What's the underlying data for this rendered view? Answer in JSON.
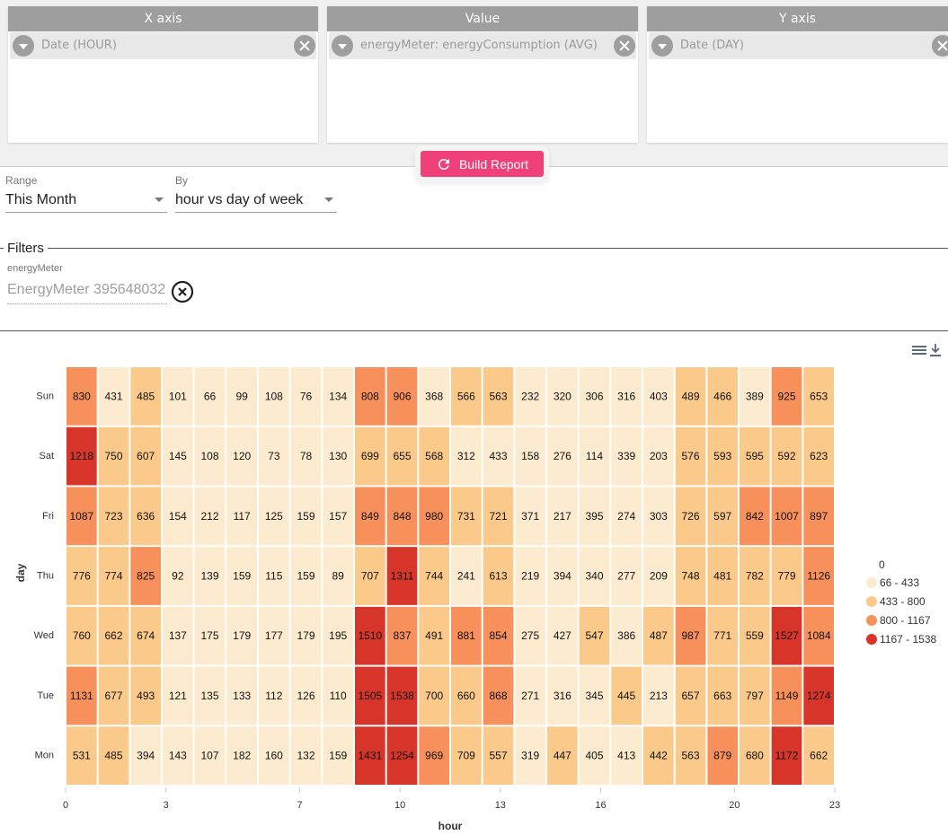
{
  "axes": {
    "x": {
      "header": "X axis",
      "chip": "Date (HOUR)"
    },
    "value": {
      "header": "Value",
      "chip": "energyMeter: energyConsumption (AVG)"
    },
    "y": {
      "header": "Y axis",
      "chip": "Date (DAY)"
    }
  },
  "build_button": {
    "label": "Build Report",
    "color": "#f0407a"
  },
  "range": {
    "label": "Range",
    "value": "This Month"
  },
  "by": {
    "label": "By",
    "value": "hour vs day of week"
  },
  "filters": {
    "title": "Filters",
    "field_label": "energyMeter",
    "field_value": "EnergyMeter 395648032"
  },
  "toolbar": {
    "icons": [
      "menu-icon",
      "download-icon"
    ]
  },
  "chart_data": {
    "type": "heatmap",
    "xlabel": "hour",
    "ylabel": "day",
    "x_ticks": [
      "0",
      "3",
      "7",
      "10",
      "13",
      "16",
      "20",
      "23"
    ],
    "rows": [
      "Sun",
      "Sat",
      "Fri",
      "Thu",
      "Wed",
      "Tue",
      "Mon"
    ],
    "columns": [
      "0",
      "1",
      "2",
      "3",
      "4",
      "5",
      "6",
      "7",
      "8",
      "9",
      "10",
      "11",
      "12",
      "13",
      "14",
      "15",
      "16",
      "17",
      "18",
      "19",
      "20",
      "21",
      "22",
      "23"
    ],
    "values": [
      [
        830,
        431,
        485,
        101,
        66,
        99,
        108,
        76,
        134,
        808,
        906,
        368,
        566,
        563,
        232,
        320,
        306,
        316,
        403,
        489,
        466,
        389,
        925,
        653
      ],
      [
        1218,
        750,
        607,
        145,
        108,
        120,
        73,
        78,
        130,
        699,
        655,
        568,
        312,
        433,
        158,
        276,
        114,
        339,
        203,
        576,
        593,
        595,
        592,
        623
      ],
      [
        1087,
        723,
        636,
        154,
        212,
        117,
        125,
        159,
        157,
        849,
        848,
        980,
        731,
        721,
        371,
        217,
        395,
        274,
        303,
        726,
        597,
        842,
        1007,
        897
      ],
      [
        776,
        774,
        825,
        92,
        139,
        159,
        115,
        159,
        89,
        707,
        1311,
        744,
        241,
        613,
        219,
        394,
        340,
        277,
        209,
        748,
        481,
        782,
        779,
        1126
      ],
      [
        760,
        662,
        674,
        137,
        175,
        179,
        177,
        179,
        195,
        1510,
        837,
        491,
        881,
        854,
        275,
        427,
        547,
        386,
        487,
        987,
        771,
        559,
        1527,
        1084
      ],
      [
        1131,
        677,
        493,
        121,
        135,
        133,
        112,
        126,
        110,
        1505,
        1538,
        700,
        660,
        868,
        271,
        316,
        345,
        445,
        213,
        657,
        663,
        797,
        1149,
        1274
      ],
      [
        531,
        485,
        394,
        143,
        107,
        182,
        160,
        132,
        159,
        1431,
        1254,
        969,
        709,
        557,
        319,
        447,
        405,
        413,
        442,
        563,
        879,
        680,
        1172,
        662
      ]
    ],
    "legend": {
      "title": "0",
      "bins": [
        {
          "label": "66 - 433",
          "min": 66,
          "max": 433,
          "color": "#fdebcf"
        },
        {
          "label": "433 - 800",
          "min": 433,
          "max": 800,
          "color": "#fbc98a"
        },
        {
          "label": "800 - 1167",
          "min": 800,
          "max": 1167,
          "color": "#f7905b"
        },
        {
          "label": "1167 - 1538",
          "min": 1167,
          "max": 1538,
          "color": "#d8352a"
        }
      ]
    }
  }
}
